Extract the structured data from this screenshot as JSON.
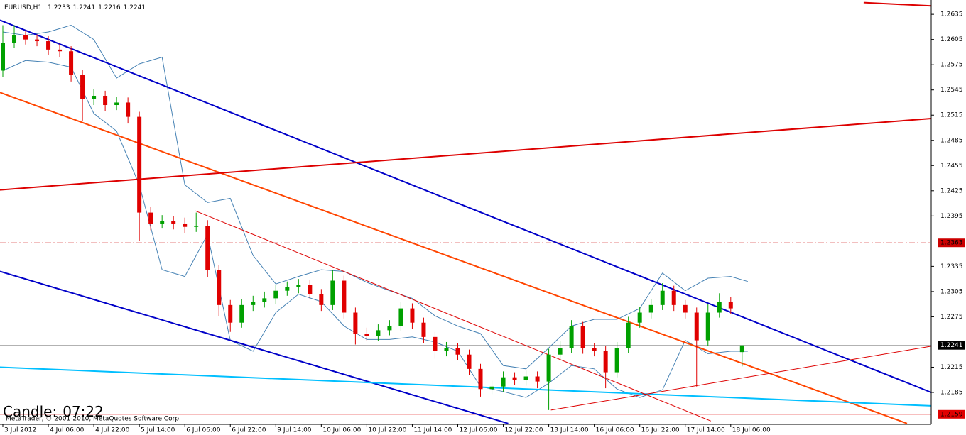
{
  "chart_data": {
    "type": "candlestick",
    "symbol": "EURUSD,H1",
    "countdown_label": "Candle:",
    "countdown": "07:22",
    "copyright": "MetaTrader, © 2001-2010, MetaQuotes Software Corp.",
    "xlim": [
      -1,
      326.5
    ],
    "ylim": [
      1.2147,
      1.2652
    ],
    "yticks": [
      1.2635,
      1.2605,
      1.2575,
      1.2545,
      1.2515,
      1.2485,
      1.2455,
      1.2425,
      1.2395,
      1.2335,
      1.2305,
      1.2275,
      1.2215,
      1.2185
    ],
    "xticks": [
      {
        "value": 0,
        "label": "3 Jul 2012"
      },
      {
        "value": 16,
        "label": "4 Jul 06:00"
      },
      {
        "value": 32,
        "label": "4 Jul 22:00"
      },
      {
        "value": 48,
        "label": "5 Jul 14:00"
      },
      {
        "value": 64,
        "label": "6 Jul 06:00"
      },
      {
        "value": 80,
        "label": "6 Jul 22:00"
      },
      {
        "value": 96,
        "label": "9 Jul 14:00"
      },
      {
        "value": 112,
        "label": "10 Jul 06:00"
      },
      {
        "value": 128,
        "label": "10 Jul 22:00"
      },
      {
        "value": 144,
        "label": "11 Jul 14:00"
      },
      {
        "value": 160,
        "label": "12 Jul 06:00"
      },
      {
        "value": 176,
        "label": "12 Jul 22:00"
      },
      {
        "value": 192,
        "label": "13 Jul 14:00"
      },
      {
        "value": 208,
        "label": "16 Jul 06:00"
      },
      {
        "value": 224,
        "label": "16 Jul 22:00"
      },
      {
        "value": 240,
        "label": "17 Jul 14:00"
      },
      {
        "value": 256,
        "label": "18 Jul 06:00"
      }
    ],
    "bull_color": "#00a000",
    "bear_color": "#e00000",
    "x": [
      0,
      4,
      8,
      12,
      16,
      20,
      24,
      28,
      32,
      36,
      40,
      44,
      48,
      52,
      56,
      60,
      64,
      68,
      72,
      76,
      80,
      84,
      88,
      92,
      96,
      100,
      104,
      108,
      112,
      116,
      120,
      124,
      128,
      132,
      136,
      140,
      144,
      148,
      152,
      156,
      160,
      164,
      168,
      172,
      176,
      180,
      184,
      188,
      192,
      196,
      200,
      204,
      208,
      212,
      216,
      220,
      224,
      228,
      232,
      236,
      240,
      244,
      248,
      252,
      256,
      260
    ],
    "ohlc": [
      [
        1.2568,
        1.2622,
        1.256,
        1.2601
      ],
      [
        1.2601,
        1.2622,
        1.2595,
        1.261
      ],
      [
        1.261,
        1.2616,
        1.2599,
        1.2605
      ],
      [
        1.2605,
        1.2611,
        1.2597,
        1.2603
      ],
      [
        1.2603,
        1.2609,
        1.2587,
        1.2593
      ],
      [
        1.2593,
        1.26,
        1.2584,
        1.2591
      ],
      [
        1.2591,
        1.2597,
        1.2555,
        1.2563
      ],
      [
        1.2563,
        1.2569,
        1.2508,
        1.2534
      ],
      [
        1.2534,
        1.2546,
        1.2527,
        1.2538
      ],
      [
        1.2538,
        1.2544,
        1.252,
        1.2527
      ],
      [
        1.2527,
        1.2537,
        1.2521,
        1.253
      ],
      [
        1.253,
        1.2536,
        1.2505,
        1.2513
      ],
      [
        1.2513,
        1.2519,
        1.2365,
        1.2399
      ],
      [
        1.2399,
        1.2406,
        1.2378,
        1.2386
      ],
      [
        1.2386,
        1.2396,
        1.238,
        1.2389
      ],
      [
        1.2389,
        1.2395,
        1.2379,
        1.2386
      ],
      [
        1.2386,
        1.2393,
        1.2375,
        1.2382
      ],
      [
        1.2382,
        1.2399,
        1.2376,
        1.2383
      ],
      [
        1.2383,
        1.239,
        1.2322,
        1.2331
      ],
      [
        1.2331,
        1.2337,
        1.2276,
        1.2289
      ],
      [
        1.2289,
        1.2295,
        1.2257,
        1.2268
      ],
      [
        1.2268,
        1.2296,
        1.2262,
        1.2289
      ],
      [
        1.2289,
        1.23,
        1.2282,
        1.2293
      ],
      [
        1.2293,
        1.2305,
        1.2286,
        1.2297
      ],
      [
        1.2297,
        1.2313,
        1.229,
        1.2306
      ],
      [
        1.2306,
        1.2317,
        1.23,
        1.231
      ],
      [
        1.231,
        1.232,
        1.2303,
        1.2313
      ],
      [
        1.2313,
        1.2319,
        1.2296,
        1.2302
      ],
      [
        1.2302,
        1.2308,
        1.2282,
        1.2289
      ],
      [
        1.2289,
        1.2331,
        1.2283,
        1.2318
      ],
      [
        1.2318,
        1.2324,
        1.2273,
        1.228
      ],
      [
        1.228,
        1.2286,
        1.2242,
        1.2255
      ],
      [
        1.2255,
        1.2262,
        1.2246,
        1.2252
      ],
      [
        1.2252,
        1.2266,
        1.2246,
        1.2259
      ],
      [
        1.2259,
        1.2271,
        1.2253,
        1.2264
      ],
      [
        1.2264,
        1.2293,
        1.2258,
        1.2285
      ],
      [
        1.2285,
        1.2291,
        1.2261,
        1.2268
      ],
      [
        1.2268,
        1.2274,
        1.2244,
        1.2251
      ],
      [
        1.2251,
        1.2257,
        1.2225,
        1.2234
      ],
      [
        1.2234,
        1.2245,
        1.2228,
        1.2238
      ],
      [
        1.2238,
        1.2244,
        1.2223,
        1.223
      ],
      [
        1.223,
        1.2236,
        1.2206,
        1.2213
      ],
      [
        1.2213,
        1.2219,
        1.218,
        1.2189
      ],
      [
        1.2189,
        1.2199,
        1.2183,
        1.2192
      ],
      [
        1.2192,
        1.221,
        1.2186,
        1.2203
      ],
      [
        1.2203,
        1.2209,
        1.2194,
        1.22
      ],
      [
        1.22,
        1.2211,
        1.2193,
        1.2204
      ],
      [
        1.2204,
        1.221,
        1.219,
        1.2198
      ],
      [
        1.2198,
        1.2237,
        1.2164,
        1.223
      ],
      [
        1.223,
        1.2246,
        1.2224,
        1.2238
      ],
      [
        1.2238,
        1.2271,
        1.2232,
        1.2264
      ],
      [
        1.2264,
        1.2269,
        1.2231,
        1.2238
      ],
      [
        1.2238,
        1.2244,
        1.2228,
        1.2234
      ],
      [
        1.2234,
        1.224,
        1.219,
        1.2209
      ],
      [
        1.2209,
        1.2245,
        1.2203,
        1.2238
      ],
      [
        1.2238,
        1.2275,
        1.2232,
        1.2268
      ],
      [
        1.2268,
        1.2287,
        1.2262,
        1.228
      ],
      [
        1.228,
        1.2296,
        1.2273,
        1.2289
      ],
      [
        1.2289,
        1.2315,
        1.2283,
        1.2306
      ],
      [
        1.2306,
        1.2312,
        1.2282,
        1.2289
      ],
      [
        1.2289,
        1.2295,
        1.2273,
        1.228
      ],
      [
        1.228,
        1.2286,
        1.2192,
        1.2247
      ],
      [
        1.2247,
        1.229,
        1.224,
        1.228
      ],
      [
        1.228,
        1.2303,
        1.2274,
        1.2293
      ],
      [
        1.2293,
        1.2299,
        1.2278,
        1.2285
      ],
      [
        1.2233,
        1.2241,
        1.2216,
        1.2241
      ]
    ],
    "bands": {
      "color": "#4682b4",
      "x": [
        0,
        8,
        16,
        24,
        32,
        40,
        48,
        56,
        64,
        72,
        80,
        88,
        96,
        104,
        112,
        120,
        128,
        136,
        144,
        152,
        160,
        168,
        176,
        184,
        192,
        200,
        208,
        216,
        224,
        232,
        240,
        248,
        256,
        262
      ],
      "upper": [
        1.2614,
        1.261,
        1.2614,
        1.2622,
        1.2605,
        1.2559,
        1.2576,
        1.2584,
        1.2432,
        1.2411,
        1.2416,
        1.2348,
        1.2314,
        1.2323,
        1.2331,
        1.2329,
        1.2316,
        1.2306,
        1.2297,
        1.2276,
        1.2264,
        1.2255,
        1.2217,
        1.2213,
        1.2238,
        1.2264,
        1.2272,
        1.2272,
        1.2285,
        1.2327,
        1.2306,
        1.2321,
        1.2323,
        1.2317
      ],
      "lower": [
        1.2568,
        1.258,
        1.2578,
        1.2572,
        1.2517,
        1.2496,
        1.2432,
        1.2331,
        1.2323,
        1.2373,
        1.2247,
        1.2234,
        1.228,
        1.2302,
        1.2293,
        1.2264,
        1.2248,
        1.2248,
        1.2251,
        1.2245,
        1.2234,
        1.2192,
        1.2186,
        1.2179,
        1.2196,
        1.2217,
        1.2213,
        1.2189,
        1.2179,
        1.2188,
        1.2247,
        1.2231,
        1.2234,
        1.2234
      ]
    },
    "lines": [
      {
        "color": "#0000c8",
        "width": 2,
        "x": [
          -1,
          326.5
        ],
        "y": [
          1.2628,
          1.2185
        ]
      },
      {
        "color": "#0000c8",
        "width": 2,
        "x": [
          -1,
          177.75
        ],
        "y": [
          1.2329,
          1.2148
        ]
      },
      {
        "color": "#ff4500",
        "width": 2,
        "x": [
          -1,
          318
        ],
        "y": [
          1.2542,
          1.2148
        ]
      },
      {
        "color": "#dd0000",
        "width": 2,
        "x": [
          -1,
          326.5
        ],
        "y": [
          1.2426,
          1.2511
        ]
      },
      {
        "color": "#dd0000",
        "width": 2,
        "x": [
          302.75,
          326.5
        ],
        "y": [
          1.2649,
          1.2645
        ]
      },
      {
        "color": "#00bfff",
        "width": 2,
        "x": [
          -1,
          326.5
        ],
        "y": [
          1.2215,
          1.2169
        ]
      },
      {
        "color": "#dd0000",
        "width": 1,
        "x": [
          67.75,
          249
        ],
        "y": [
          1.2401,
          1.2151
        ]
      },
      {
        "color": "#dd0000",
        "width": 1,
        "x": [
          192.75,
          326.5
        ],
        "y": [
          1.2164,
          1.224
        ]
      }
    ],
    "hlines": [
      {
        "price": 1.2363,
        "color": "#cc0000",
        "style": "dashdot"
      },
      {
        "price": 1.2159,
        "color": "#e00000",
        "style": "solid"
      }
    ],
    "bid_color": "#999999"
  }
}
